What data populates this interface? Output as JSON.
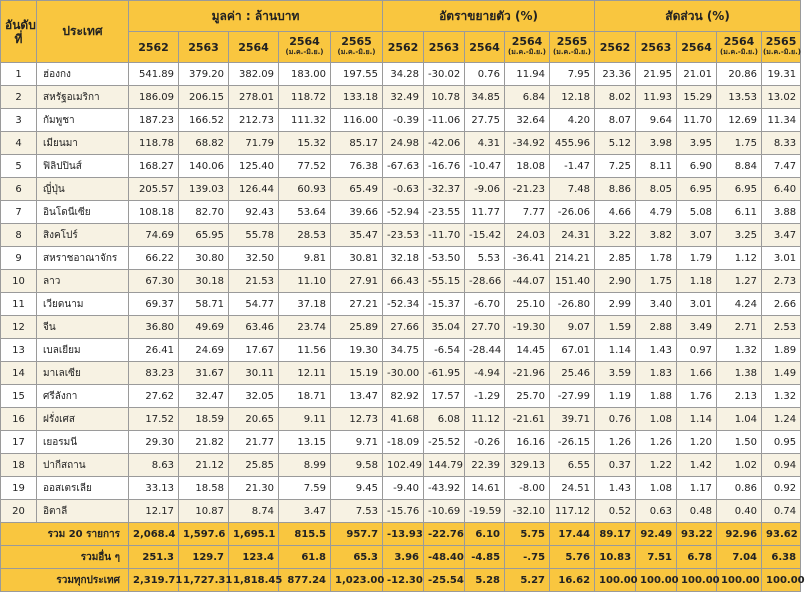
{
  "header": {
    "rank": "อันดับที่",
    "country": "ประเทศ",
    "value_group": "มูลค่า : ล้านบาท",
    "growth_group": "อัตราขยายตัว (%)",
    "share_group": "สัดส่วน (%)",
    "year_2562": "2562",
    "year_2563": "2563",
    "year_2564": "2564",
    "year_2564_partial": "2564",
    "year_2565_partial": "2565",
    "period_note": "(ม.ค.-มิ.ย.)"
  },
  "rows": [
    {
      "rank": "1",
      "country": "ฮ่องกง",
      "v1": "541.89",
      "v2": "379.20",
      "v3": "382.09",
      "v4": "183.00",
      "v5": "197.55",
      "g1": "34.28",
      "g2": "-30.02",
      "g3": "0.76",
      "g4": "11.94",
      "g5": "7.95",
      "s1": "23.36",
      "s2": "21.95",
      "s3": "21.01",
      "s4": "20.86",
      "s5": "19.31"
    },
    {
      "rank": "2",
      "country": "สหรัฐอเมริกา",
      "v1": "186.09",
      "v2": "206.15",
      "v3": "278.01",
      "v4": "118.72",
      "v5": "133.18",
      "g1": "32.49",
      "g2": "10.78",
      "g3": "34.85",
      "g4": "6.84",
      "g5": "12.18",
      "s1": "8.02",
      "s2": "11.93",
      "s3": "15.29",
      "s4": "13.53",
      "s5": "13.02"
    },
    {
      "rank": "3",
      "country": "กัมพูชา",
      "v1": "187.23",
      "v2": "166.52",
      "v3": "212.73",
      "v4": "111.32",
      "v5": "116.00",
      "g1": "-0.39",
      "g2": "-11.06",
      "g3": "27.75",
      "g4": "32.64",
      "g5": "4.20",
      "s1": "8.07",
      "s2": "9.64",
      "s3": "11.70",
      "s4": "12.69",
      "s5": "11.34"
    },
    {
      "rank": "4",
      "country": "เมียนมา",
      "v1": "118.78",
      "v2": "68.82",
      "v3": "71.79",
      "v4": "15.32",
      "v5": "85.17",
      "g1": "24.98",
      "g2": "-42.06",
      "g3": "4.31",
      "g4": "-34.92",
      "g5": "455.96",
      "s1": "5.12",
      "s2": "3.98",
      "s3": "3.95",
      "s4": "1.75",
      "s5": "8.33"
    },
    {
      "rank": "5",
      "country": "ฟิลิปปินส์",
      "v1": "168.27",
      "v2": "140.06",
      "v3": "125.40",
      "v4": "77.52",
      "v5": "76.38",
      "g1": "-67.63",
      "g2": "-16.76",
      "g3": "-10.47",
      "g4": "18.08",
      "g5": "-1.47",
      "s1": "7.25",
      "s2": "8.11",
      "s3": "6.90",
      "s4": "8.84",
      "s5": "7.47"
    },
    {
      "rank": "6",
      "country": "ญี่ปุ่น",
      "v1": "205.57",
      "v2": "139.03",
      "v3": "126.44",
      "v4": "60.93",
      "v5": "65.49",
      "g1": "-0.63",
      "g2": "-32.37",
      "g3": "-9.06",
      "g4": "-21.23",
      "g5": "7.48",
      "s1": "8.86",
      "s2": "8.05",
      "s3": "6.95",
      "s4": "6.95",
      "s5": "6.40"
    },
    {
      "rank": "7",
      "country": "อินโดนีเซีย",
      "v1": "108.18",
      "v2": "82.70",
      "v3": "92.43",
      "v4": "53.64",
      "v5": "39.66",
      "g1": "-52.94",
      "g2": "-23.55",
      "g3": "11.77",
      "g4": "7.77",
      "g5": "-26.06",
      "s1": "4.66",
      "s2": "4.79",
      "s3": "5.08",
      "s4": "6.11",
      "s5": "3.88"
    },
    {
      "rank": "8",
      "country": "สิงคโปร์",
      "v1": "74.69",
      "v2": "65.95",
      "v3": "55.78",
      "v4": "28.53",
      "v5": "35.47",
      "g1": "-23.53",
      "g2": "-11.70",
      "g3": "-15.42",
      "g4": "24.03",
      "g5": "24.31",
      "s1": "3.22",
      "s2": "3.82",
      "s3": "3.07",
      "s4": "3.25",
      "s5": "3.47"
    },
    {
      "rank": "9",
      "country": "สหราชอาณาจักร",
      "v1": "66.22",
      "v2": "30.80",
      "v3": "32.50",
      "v4": "9.81",
      "v5": "30.81",
      "g1": "32.18",
      "g2": "-53.50",
      "g3": "5.53",
      "g4": "-36.41",
      "g5": "214.21",
      "s1": "2.85",
      "s2": "1.78",
      "s3": "1.79",
      "s4": "1.12",
      "s5": "3.01"
    },
    {
      "rank": "10",
      "country": "ลาว",
      "v1": "67.30",
      "v2": "30.18",
      "v3": "21.53",
      "v4": "11.10",
      "v5": "27.91",
      "g1": "66.43",
      "g2": "-55.15",
      "g3": "-28.66",
      "g4": "-44.07",
      "g5": "151.40",
      "s1": "2.90",
      "s2": "1.75",
      "s3": "1.18",
      "s4": "1.27",
      "s5": "2.73"
    },
    {
      "rank": "11",
      "country": "เวียดนาม",
      "v1": "69.37",
      "v2": "58.71",
      "v3": "54.77",
      "v4": "37.18",
      "v5": "27.21",
      "g1": "-52.34",
      "g2": "-15.37",
      "g3": "-6.70",
      "g4": "25.10",
      "g5": "-26.80",
      "s1": "2.99",
      "s2": "3.40",
      "s3": "3.01",
      "s4": "4.24",
      "s5": "2.66"
    },
    {
      "rank": "12",
      "country": "จีน",
      "v1": "36.80",
      "v2": "49.69",
      "v3": "63.46",
      "v4": "23.74",
      "v5": "25.89",
      "g1": "27.66",
      "g2": "35.04",
      "g3": "27.70",
      "g4": "-19.30",
      "g5": "9.07",
      "s1": "1.59",
      "s2": "2.88",
      "s3": "3.49",
      "s4": "2.71",
      "s5": "2.53"
    },
    {
      "rank": "13",
      "country": "เบลเยียม",
      "v1": "26.41",
      "v2": "24.69",
      "v3": "17.67",
      "v4": "11.56",
      "v5": "19.30",
      "g1": "34.75",
      "g2": "-6.54",
      "g3": "-28.44",
      "g4": "14.45",
      "g5": "67.01",
      "s1": "1.14",
      "s2": "1.43",
      "s3": "0.97",
      "s4": "1.32",
      "s5": "1.89"
    },
    {
      "rank": "14",
      "country": "มาเลเซีย",
      "v1": "83.23",
      "v2": "31.67",
      "v3": "30.11",
      "v4": "12.11",
      "v5": "15.19",
      "g1": "-30.00",
      "g2": "-61.95",
      "g3": "-4.94",
      "g4": "-21.96",
      "g5": "25.46",
      "s1": "3.59",
      "s2": "1.83",
      "s3": "1.66",
      "s4": "1.38",
      "s5": "1.49"
    },
    {
      "rank": "15",
      "country": "ศรีลังกา",
      "v1": "27.62",
      "v2": "32.47",
      "v3": "32.05",
      "v4": "18.71",
      "v5": "13.47",
      "g1": "82.92",
      "g2": "17.57",
      "g3": "-1.29",
      "g4": "25.70",
      "g5": "-27.99",
      "s1": "1.19",
      "s2": "1.88",
      "s3": "1.76",
      "s4": "2.13",
      "s5": "1.32"
    },
    {
      "rank": "16",
      "country": "ฝรั่งเศส",
      "v1": "17.52",
      "v2": "18.59",
      "v3": "20.65",
      "v4": "9.11",
      "v5": "12.73",
      "g1": "41.68",
      "g2": "6.08",
      "g3": "11.12",
      "g4": "-21.61",
      "g5": "39.71",
      "s1": "0.76",
      "s2": "1.08",
      "s3": "1.14",
      "s4": "1.04",
      "s5": "1.24"
    },
    {
      "rank": "17",
      "country": "เยอรมนี",
      "v1": "29.30",
      "v2": "21.82",
      "v3": "21.77",
      "v4": "13.15",
      "v5": "9.71",
      "g1": "-18.09",
      "g2": "-25.52",
      "g3": "-0.26",
      "g4": "16.16",
      "g5": "-26.15",
      "s1": "1.26",
      "s2": "1.26",
      "s3": "1.20",
      "s4": "1.50",
      "s5": "0.95"
    },
    {
      "rank": "18",
      "country": "ปากีสถาน",
      "v1": "8.63",
      "v2": "21.12",
      "v3": "25.85",
      "v4": "8.99",
      "v5": "9.58",
      "g1": "102.49",
      "g2": "144.79",
      "g3": "22.39",
      "g4": "329.13",
      "g5": "6.55",
      "s1": "0.37",
      "s2": "1.22",
      "s3": "1.42",
      "s4": "1.02",
      "s5": "0.94"
    },
    {
      "rank": "19",
      "country": "ออสเตรเลีย",
      "v1": "33.13",
      "v2": "18.58",
      "v3": "21.30",
      "v4": "7.59",
      "v5": "9.45",
      "g1": "-9.40",
      "g2": "-43.92",
      "g3": "14.61",
      "g4": "-8.00",
      "g5": "24.51",
      "s1": "1.43",
      "s2": "1.08",
      "s3": "1.17",
      "s4": "0.86",
      "s5": "0.92"
    },
    {
      "rank": "20",
      "country": "อิตาลี",
      "v1": "12.17",
      "v2": "10.87",
      "v3": "8.74",
      "v4": "3.47",
      "v5": "7.53",
      "g1": "-15.76",
      "g2": "-10.69",
      "g3": "-19.59",
      "g4": "-32.10",
      "g5": "117.12",
      "s1": "0.52",
      "s2": "0.63",
      "s3": "0.48",
      "s4": "0.40",
      "s5": "0.74"
    }
  ],
  "totals": [
    {
      "label": "รวม 20 รายการ",
      "v1": "2,068.4",
      "v2": "1,597.6",
      "v3": "1,695.1",
      "v4": "815.5",
      "v5": "957.7",
      "g1": "-13.93",
      "g2": "-22.76",
      "g3": "6.10",
      "g4": "5.75",
      "g5": "17.44",
      "s1": "89.17",
      "s2": "92.49",
      "s3": "93.22",
      "s4": "92.96",
      "s5": "93.62"
    },
    {
      "label": "รวมอื่น ๆ",
      "v1": "251.3",
      "v2": "129.7",
      "v3": "123.4",
      "v4": "61.8",
      "v5": "65.3",
      "g1": "3.96",
      "g2": "-48.40",
      "g3": "-4.85",
      "g4": "-.75",
      "g5": "5.76",
      "s1": "10.83",
      "s2": "7.51",
      "s3": "6.78",
      "s4": "7.04",
      "s5": "6.38"
    },
    {
      "label": "รวมทุกประเทศ",
      "v1": "2,319.71",
      "v2": "1,727.31",
      "v3": "1,818.45",
      "v4": "877.24",
      "v5": "1,023.00",
      "g1": "-12.30",
      "g2": "-25.54",
      "g3": "5.28",
      "g4": "5.27",
      "g5": "16.62",
      "s1": "100.00",
      "s2": "100.00",
      "s3": "100.00",
      "s4": "100.00",
      "s5": "100.00"
    }
  ]
}
